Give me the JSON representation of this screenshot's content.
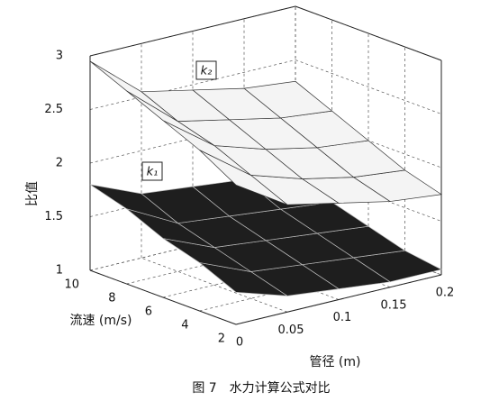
{
  "chart_data": {
    "type": "surface",
    "caption": "图 7　水力计算公式对比",
    "xlabel": "管径 (m)",
    "ylabel": "流速 (m/s)",
    "zlabel": "比值",
    "x": [
      0,
      0.05,
      0.1,
      0.15,
      0.2
    ],
    "y": [
      2,
      4,
      6,
      8,
      10
    ],
    "xlim": [
      0,
      0.2
    ],
    "ylim": [
      2,
      10
    ],
    "zlim": [
      1,
      3
    ],
    "xticks": [
      0,
      0.05,
      0.1,
      0.15,
      0.2
    ],
    "yticks": [
      2,
      4,
      6,
      8,
      10
    ],
    "zticks": [
      1,
      1.5,
      2,
      2.5,
      3
    ],
    "grid": true,
    "series": [
      {
        "name": "k₁",
        "color": "#1e1e1e",
        "z": [
          [
            1.3,
            1.15,
            1.1,
            1.05,
            1.05
          ],
          [
            1.45,
            1.25,
            1.2,
            1.15,
            1.1
          ],
          [
            1.55,
            1.35,
            1.3,
            1.25,
            1.2
          ],
          [
            1.7,
            1.45,
            1.4,
            1.35,
            1.3
          ],
          [
            1.8,
            1.6,
            1.55,
            1.5,
            1.45
          ]
        ]
      },
      {
        "name": "k₂",
        "color": "#f4f4f4",
        "z": [
          [
            2.3,
            2.0,
            1.9,
            1.8,
            1.75
          ],
          [
            2.5,
            2.15,
            2.0,
            1.9,
            1.85
          ],
          [
            2.65,
            2.3,
            2.15,
            2.05,
            2.0
          ],
          [
            2.8,
            2.4,
            2.3,
            2.2,
            2.15
          ],
          [
            2.95,
            2.55,
            2.45,
            2.35,
            2.3
          ]
        ]
      }
    ]
  }
}
